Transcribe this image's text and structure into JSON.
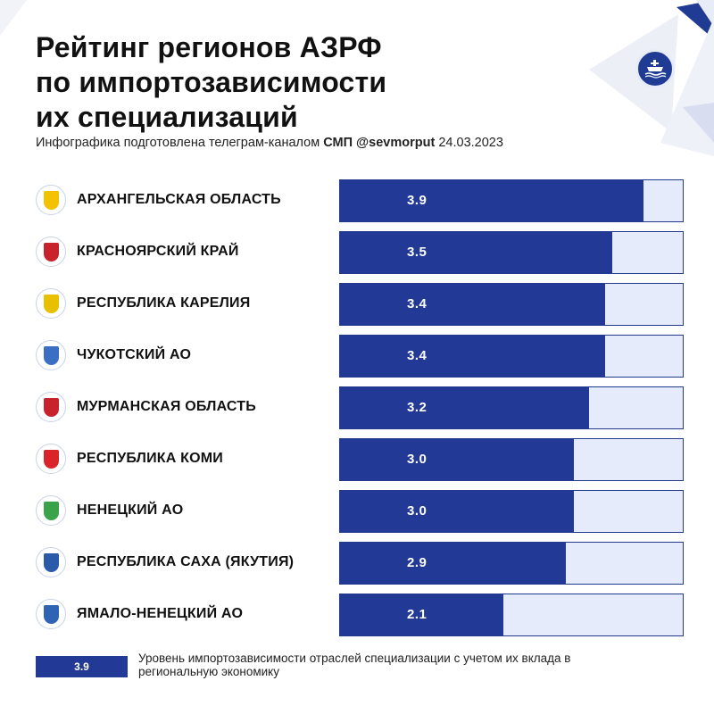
{
  "header": {
    "title_lines": [
      "Рейтинг регионов АЗРФ",
      "по импортозависимости",
      "их специализаций"
    ],
    "subtitle_prefix": "Инфографика подготовлена телеграм-каналом",
    "subtitle_channel": "СМП @sevmorput",
    "subtitle_date": "24.03.2023"
  },
  "colors": {
    "bar_fill": "#223a96",
    "bar_track": "#e6ebfb",
    "decor_blue": "#1f3b94",
    "decor_light": "#e8ecf6"
  },
  "logo": {
    "icon": "ship-icon"
  },
  "chart_data": {
    "type": "bar",
    "orientation": "horizontal",
    "categories": [
      "АРХАНГЕЛЬСКАЯ ОБЛАСТЬ",
      "КРАСНОЯРСКИЙ КРАЙ",
      "РЕСПУБЛИКА КАРЕЛИЯ",
      "ЧУКОТСКИЙ АО",
      "МУРМАНСКАЯ ОБЛАСТЬ",
      "РЕСПУБЛИКА КОМИ",
      "НЕНЕЦКИЙ АО",
      "РЕСПУБЛИКА САХА (ЯКУТИЯ)",
      "ЯМАЛО-НЕНЕЦКИЙ АО"
    ],
    "values": [
      3.9,
      3.5,
      3.4,
      3.4,
      3.2,
      3.0,
      3.0,
      2.9,
      2.1
    ],
    "value_labels": [
      "3.9",
      "3.5",
      "3.4",
      "3.4",
      "3.2",
      "3.0",
      "3.0",
      "2.9",
      "2.1"
    ],
    "xlim": [
      0,
      4.4
    ],
    "grid": false,
    "legend": "bottom-left"
  },
  "emblems": [
    {
      "icon": "arkhangelsk-coat-of-arms-icon",
      "color": "#f2c200"
    },
    {
      "icon": "krasnoyarsk-coat-of-arms-icon",
      "color": "#c8232c"
    },
    {
      "icon": "karelia-coat-of-arms-icon",
      "color": "#e8c000"
    },
    {
      "icon": "chukotka-coat-of-arms-icon",
      "color": "#3b6fc4"
    },
    {
      "icon": "murmansk-coat-of-arms-icon",
      "color": "#c8232c"
    },
    {
      "icon": "komi-coat-of-arms-icon",
      "color": "#d9252a"
    },
    {
      "icon": "nenets-coat-of-arms-icon",
      "color": "#3aa34a"
    },
    {
      "icon": "sakha-coat-of-arms-icon",
      "color": "#2b5aa8"
    },
    {
      "icon": "yamal-coat-of-arms-icon",
      "color": "#2f63b3"
    }
  ],
  "legend": {
    "sample_value": "3.9",
    "text": "Уровень импортозависимости отраслей специализации с учетом их вклада в региональную экономику"
  }
}
